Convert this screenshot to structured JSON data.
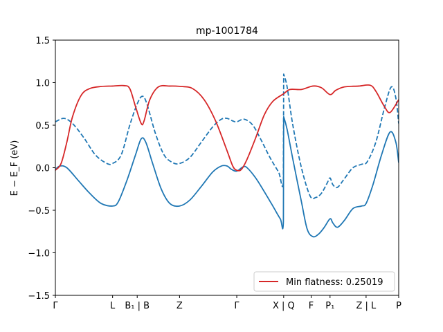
{
  "chart_data": {
    "type": "line",
    "title": "mp-1001784",
    "ylabel": "E − E_F (eV)",
    "ylim": [
      -1.5,
      1.5
    ],
    "xlim": [
      0,
      6.0
    ],
    "y_ticks": [
      "1.5",
      "1.0",
      "0.5",
      "0.0",
      "−0.5",
      "−1.0",
      "−1.5"
    ],
    "y_tick_values": [
      1.5,
      1.0,
      0.5,
      0.0,
      -0.5,
      -1.0,
      -1.5
    ],
    "x_ticks": [
      {
        "x": 0.0,
        "label": "Γ"
      },
      {
        "x": 1.0,
        "label": "L"
      },
      {
        "x": 1.43,
        "label": "B₁ | B"
      },
      {
        "x": 2.17,
        "label": "Z"
      },
      {
        "x": 3.17,
        "label": "Γ"
      },
      {
        "x": 3.99,
        "label": "X | Q"
      },
      {
        "x": 4.47,
        "label": "F"
      },
      {
        "x": 4.8,
        "label": "P₁"
      },
      {
        "x": 5.43,
        "label": "Z | L"
      },
      {
        "x": 6.0,
        "label": "P"
      }
    ],
    "series": [
      {
        "name": "Min flatness: 0.25019",
        "color": "#d62728",
        "style": "solid",
        "points": [
          [
            0.0,
            -0.03
          ],
          [
            0.1,
            0.05
          ],
          [
            0.2,
            0.3
          ],
          [
            0.3,
            0.6
          ],
          [
            0.45,
            0.85
          ],
          [
            0.6,
            0.93
          ],
          [
            0.8,
            0.955
          ],
          [
            1.0,
            0.96
          ],
          [
            1.2,
            0.965
          ],
          [
            1.3,
            0.93
          ],
          [
            1.4,
            0.72
          ],
          [
            1.5,
            0.52
          ],
          [
            1.55,
            0.55
          ],
          [
            1.65,
            0.8
          ],
          [
            1.8,
            0.95
          ],
          [
            2.0,
            0.96
          ],
          [
            2.2,
            0.955
          ],
          [
            2.4,
            0.93
          ],
          [
            2.6,
            0.8
          ],
          [
            2.8,
            0.55
          ],
          [
            3.0,
            0.2
          ],
          [
            3.1,
            0.02
          ],
          [
            3.17,
            -0.03
          ],
          [
            3.25,
            -0.02
          ],
          [
            3.35,
            0.1
          ],
          [
            3.5,
            0.35
          ],
          [
            3.65,
            0.62
          ],
          [
            3.8,
            0.78
          ],
          [
            3.99,
            0.87
          ],
          [
            4.1,
            0.92
          ],
          [
            4.3,
            0.92
          ],
          [
            4.5,
            0.96
          ],
          [
            4.65,
            0.94
          ],
          [
            4.8,
            0.86
          ],
          [
            4.9,
            0.91
          ],
          [
            5.05,
            0.95
          ],
          [
            5.3,
            0.96
          ],
          [
            5.5,
            0.97
          ],
          [
            5.6,
            0.9
          ],
          [
            5.75,
            0.72
          ],
          [
            5.85,
            0.65
          ],
          [
            6.0,
            0.8
          ]
        ]
      },
      {
        "color": "#1f77b4",
        "style": "dashed",
        "points": [
          [
            0.0,
            0.54
          ],
          [
            0.15,
            0.58
          ],
          [
            0.3,
            0.52
          ],
          [
            0.5,
            0.35
          ],
          [
            0.7,
            0.15
          ],
          [
            0.9,
            0.05
          ],
          [
            1.0,
            0.05
          ],
          [
            1.15,
            0.15
          ],
          [
            1.3,
            0.5
          ],
          [
            1.43,
            0.75
          ],
          [
            1.52,
            0.84
          ],
          [
            1.6,
            0.75
          ],
          [
            1.75,
            0.4
          ],
          [
            1.9,
            0.15
          ],
          [
            2.05,
            0.06
          ],
          [
            2.17,
            0.05
          ],
          [
            2.35,
            0.12
          ],
          [
            2.55,
            0.3
          ],
          [
            2.75,
            0.48
          ],
          [
            2.9,
            0.57
          ],
          [
            3.0,
            0.58
          ],
          [
            3.1,
            0.55
          ],
          [
            3.17,
            0.54
          ],
          [
            3.3,
            0.57
          ],
          [
            3.45,
            0.5
          ],
          [
            3.6,
            0.32
          ],
          [
            3.75,
            0.12
          ],
          [
            3.9,
            -0.05
          ],
          [
            3.985,
            -0.15
          ],
          [
            3.99,
            1.1
          ],
          [
            4.05,
            0.95
          ],
          [
            4.15,
            0.5
          ],
          [
            4.3,
            0.0
          ],
          [
            4.45,
            -0.33
          ],
          [
            4.55,
            -0.35
          ],
          [
            4.65,
            -0.3
          ],
          [
            4.75,
            -0.18
          ],
          [
            4.8,
            -0.12
          ],
          [
            4.85,
            -0.2
          ],
          [
            4.93,
            -0.23
          ],
          [
            5.05,
            -0.13
          ],
          [
            5.2,
            0.0
          ],
          [
            5.35,
            0.04
          ],
          [
            5.45,
            0.07
          ],
          [
            5.6,
            0.3
          ],
          [
            5.75,
            0.7
          ],
          [
            5.87,
            0.95
          ],
          [
            5.95,
            0.82
          ],
          [
            6.0,
            0.52
          ]
        ]
      },
      {
        "color": "#1f77b4",
        "style": "solid",
        "points": [
          [
            0.0,
            -0.02
          ],
          [
            0.08,
            0.02
          ],
          [
            0.2,
            0.0
          ],
          [
            0.4,
            -0.15
          ],
          [
            0.6,
            -0.3
          ],
          [
            0.8,
            -0.42
          ],
          [
            1.0,
            -0.45
          ],
          [
            1.1,
            -0.4
          ],
          [
            1.25,
            -0.15
          ],
          [
            1.4,
            0.15
          ],
          [
            1.5,
            0.34
          ],
          [
            1.58,
            0.3
          ],
          [
            1.7,
            0.05
          ],
          [
            1.85,
            -0.25
          ],
          [
            2.0,
            -0.42
          ],
          [
            2.17,
            -0.45
          ],
          [
            2.35,
            -0.38
          ],
          [
            2.55,
            -0.22
          ],
          [
            2.75,
            -0.05
          ],
          [
            2.9,
            0.02
          ],
          [
            3.0,
            0.02
          ],
          [
            3.08,
            -0.02
          ],
          [
            3.17,
            -0.04
          ],
          [
            3.28,
            0.01
          ],
          [
            3.35,
            0.0
          ],
          [
            3.5,
            -0.12
          ],
          [
            3.65,
            -0.28
          ],
          [
            3.8,
            -0.45
          ],
          [
            3.93,
            -0.6
          ],
          [
            3.985,
            -0.63
          ],
          [
            3.99,
            0.6
          ],
          [
            4.05,
            0.45
          ],
          [
            4.15,
            0.1
          ],
          [
            4.3,
            -0.4
          ],
          [
            4.4,
            -0.72
          ],
          [
            4.5,
            -0.81
          ],
          [
            4.6,
            -0.78
          ],
          [
            4.7,
            -0.7
          ],
          [
            4.8,
            -0.6
          ],
          [
            4.85,
            -0.65
          ],
          [
            4.93,
            -0.7
          ],
          [
            5.05,
            -0.62
          ],
          [
            5.2,
            -0.48
          ],
          [
            5.35,
            -0.45
          ],
          [
            5.43,
            -0.42
          ],
          [
            5.55,
            -0.2
          ],
          [
            5.7,
            0.15
          ],
          [
            5.85,
            0.42
          ],
          [
            5.95,
            0.3
          ],
          [
            6.0,
            0.06
          ]
        ]
      }
    ],
    "legend": {
      "label": "Min flatness: 0.25019",
      "color": "#d62728",
      "position": "lower right"
    },
    "grid": false
  }
}
